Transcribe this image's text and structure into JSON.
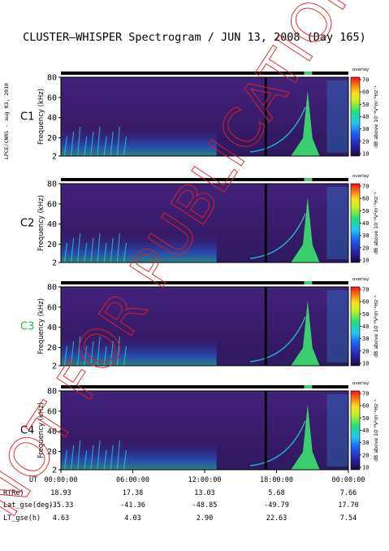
{
  "title": "CLUSTER–WHISPER Spectrogram / JUN 13, 2008 (Day 165)",
  "side_label": "LPCE/CNRS - aug 03, 2010",
  "watermark": "NOT FOR PUBLICATION",
  "colors": {
    "background_field": "#3b1e6e",
    "bar": "#000000",
    "green_marker": "#4ec86a"
  },
  "chart_data": {
    "type": "heatmap",
    "panels": [
      {
        "label": "C1",
        "label_color": "#000000"
      },
      {
        "label": "C2",
        "label_color": "#000000"
      },
      {
        "label": "C3",
        "label_color": "#27b54a"
      },
      {
        "label": "C4",
        "label_color": "#000000"
      }
    ],
    "ylabel": "Frequency (kHz)",
    "yticks": [
      "80",
      "60",
      "40",
      "20",
      "2"
    ],
    "ylim": [
      2,
      80
    ],
    "colorbar": {
      "label": "dB above 10⁻⁸V²m⁻²Hz⁻¹",
      "header": "overlay",
      "ticks": [
        "70",
        "60",
        "50",
        "40",
        "30",
        "20",
        "10"
      ],
      "range": [
        10,
        70
      ]
    },
    "x_labels": [
      "00:00:00",
      "06:00:00",
      "12:00:00",
      "18:00:00",
      "00:00:00"
    ],
    "x_hours": [
      0,
      6,
      12,
      18,
      24
    ],
    "data_gap_hour": 17.0,
    "ephemeris": [
      {
        "name": "UT",
        "values": [
          "00:00:00",
          "06:00:00",
          "12:00:00",
          "18:00:00",
          "00:00:00"
        ]
      },
      {
        "name": "R(Re)",
        "values": [
          "18.93",
          "17.38",
          "13.03",
          "5.68",
          "7.66"
        ]
      },
      {
        "name": "Lat_gse(deg)",
        "values": [
          "-35.33",
          "-41.36",
          "-48.85",
          "-49.79",
          "17.70"
        ]
      },
      {
        "name": "LT_gse(h)",
        "values": [
          "4.63",
          "4.03",
          "2.90",
          "22.63",
          "7.54"
        ]
      }
    ]
  }
}
